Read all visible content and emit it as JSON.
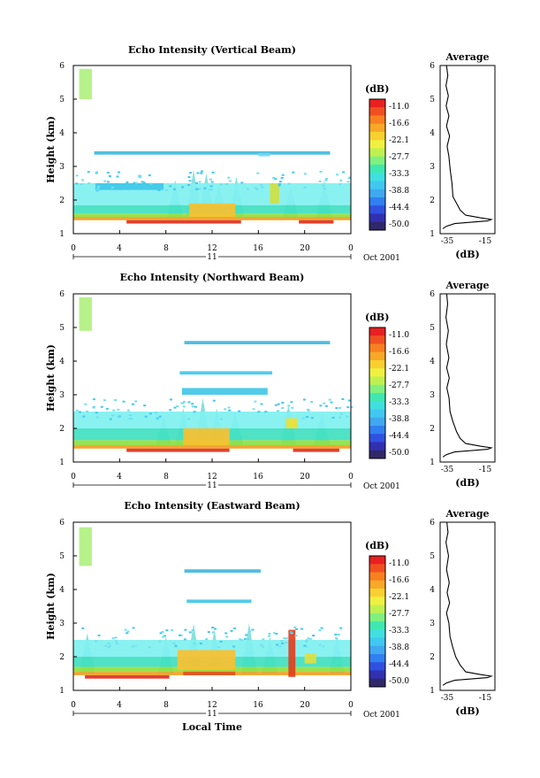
{
  "chart_data": [
    {
      "type": "heatmap",
      "title": "Echo Intensity (Vertical Beam)",
      "ylabel": "Height (km)",
      "y_ticks": [
        "1",
        "2",
        "3",
        "4",
        "5",
        "6"
      ],
      "x_ticks": [
        "0",
        "4",
        "8",
        "12",
        "16",
        "20",
        "0"
      ],
      "date_day": "11",
      "date_label": "Oct 2001",
      "ylim": [
        1,
        6
      ],
      "xlim": [
        0,
        24
      ],
      "layers": [
        {
          "x0": 0,
          "x1": 24,
          "y0": 1.4,
          "y1": 1.5,
          "c": "#f0a020"
        },
        {
          "x0": 4.6,
          "x1": 14.5,
          "y0": 1.3,
          "y1": 1.4,
          "c": "#e03020"
        },
        {
          "x0": 19.5,
          "x1": 22.5,
          "y0": 1.3,
          "y1": 1.4,
          "c": "#e03020"
        },
        {
          "x0": 0,
          "x1": 24,
          "y0": 1.5,
          "y1": 1.6,
          "c": "#90e040"
        },
        {
          "x0": 0,
          "x1": 24,
          "y0": 1.6,
          "y1": 1.85,
          "c": "#40e0c0"
        },
        {
          "x0": 0,
          "x1": 24,
          "y0": 1.85,
          "y1": 2.5,
          "c": "#80f0f0"
        },
        {
          "x0": 10,
          "x1": 14,
          "y0": 1.5,
          "y1": 1.9,
          "c": "#f8c030"
        },
        {
          "x0": 1.8,
          "x1": 22.2,
          "y0": 3.35,
          "y1": 3.45,
          "c": "#40b8e0"
        },
        {
          "x0": 1.9,
          "x1": 7.8,
          "y0": 2.3,
          "y1": 2.5,
          "c": "#40c8e8"
        },
        {
          "x0": 0.5,
          "x1": 1.6,
          "y0": 5.0,
          "y1": 5.9,
          "c": "#b0f080"
        },
        {
          "x0": 16,
          "x1": 17,
          "y0": 3.3,
          "y1": 3.4,
          "c": "#70d8f0"
        },
        {
          "x0": 17,
          "x1": 17.8,
          "y0": 1.9,
          "y1": 2.5,
          "c": "#d0e040"
        }
      ],
      "cols": [
        {
          "x": 8.8,
          "h": 2.6
        },
        {
          "x": 10.4,
          "h": 2.9
        },
        {
          "x": 11.5,
          "h": 2.8
        },
        {
          "x": 12.6,
          "h": 2.5
        },
        {
          "x": 14.1,
          "h": 2.7
        },
        {
          "x": 18.8,
          "h": 2.4
        },
        {
          "x": 21.7,
          "h": 2.6
        }
      ]
    },
    {
      "type": "heatmap",
      "title": "Echo Intensity (Northward Beam)",
      "ylabel": "Height (km)",
      "y_ticks": [
        "1",
        "2",
        "3",
        "4",
        "5",
        "6"
      ],
      "x_ticks": [
        "0",
        "4",
        "8",
        "12",
        "16",
        "20",
        "0"
      ],
      "date_day": "11",
      "date_label": "Oct 2001",
      "ylim": [
        1,
        6
      ],
      "xlim": [
        0,
        24
      ],
      "layers": [
        {
          "x0": 0,
          "x1": 24,
          "y0": 1.4,
          "y1": 1.5,
          "c": "#f0a020"
        },
        {
          "x0": 4.6,
          "x1": 13.5,
          "y0": 1.3,
          "y1": 1.4,
          "c": "#e03020"
        },
        {
          "x0": 19.0,
          "x1": 23.0,
          "y0": 1.3,
          "y1": 1.4,
          "c": "#e03020"
        },
        {
          "x0": 0,
          "x1": 24,
          "y0": 1.5,
          "y1": 1.65,
          "c": "#90e040"
        },
        {
          "x0": 0,
          "x1": 24,
          "y0": 1.65,
          "y1": 2.0,
          "c": "#40e0c0"
        },
        {
          "x0": 0,
          "x1": 24,
          "y0": 2.0,
          "y1": 2.5,
          "c": "#80f0f0"
        },
        {
          "x0": 9.5,
          "x1": 13.5,
          "y0": 1.5,
          "y1": 2.0,
          "c": "#f8c030"
        },
        {
          "x0": 9.6,
          "x1": 22.2,
          "y0": 4.5,
          "y1": 4.6,
          "c": "#40b8e0"
        },
        {
          "x0": 9.2,
          "x1": 17.2,
          "y0": 3.6,
          "y1": 3.7,
          "c": "#40c8e8"
        },
        {
          "x0": 9.4,
          "x1": 16.8,
          "y0": 3.0,
          "y1": 3.2,
          "c": "#40c8e8"
        },
        {
          "x0": 0.5,
          "x1": 1.6,
          "y0": 4.9,
          "y1": 5.9,
          "c": "#b0f080"
        },
        {
          "x0": 18.4,
          "x1": 19.4,
          "y0": 2.0,
          "y1": 2.3,
          "c": "#f0e030"
        }
      ],
      "cols": [
        {
          "x": 7.8,
          "h": 2.4
        },
        {
          "x": 9.5,
          "h": 2.6
        },
        {
          "x": 11.2,
          "h": 2.9
        },
        {
          "x": 12.4,
          "h": 2.6
        },
        {
          "x": 14.0,
          "h": 2.5
        },
        {
          "x": 18.6,
          "h": 2.7
        },
        {
          "x": 21.5,
          "h": 2.5
        }
      ]
    },
    {
      "type": "heatmap",
      "title": "Echo Intensity (Eastward Beam)",
      "ylabel": "Height (km)",
      "xlabel": "Local Time",
      "y_ticks": [
        "1",
        "2",
        "3",
        "4",
        "5",
        "6"
      ],
      "x_ticks": [
        "0",
        "4",
        "8",
        "12",
        "16",
        "20",
        "0"
      ],
      "date_day": "11",
      "date_label": "Oct 2001",
      "ylim": [
        1,
        6
      ],
      "xlim": [
        0,
        24
      ],
      "layers": [
        {
          "x0": 0,
          "x1": 24,
          "y0": 1.45,
          "y1": 1.55,
          "c": "#f0a020"
        },
        {
          "x0": 1.0,
          "x1": 8.3,
          "y0": 1.35,
          "y1": 1.45,
          "c": "#e03020"
        },
        {
          "x0": 9.5,
          "x1": 14.0,
          "y0": 1.45,
          "y1": 1.6,
          "c": "#e05020"
        },
        {
          "x0": 0,
          "x1": 24,
          "y0": 1.55,
          "y1": 1.7,
          "c": "#90e040"
        },
        {
          "x0": 0,
          "x1": 24,
          "y0": 1.7,
          "y1": 2.0,
          "c": "#40e0c0"
        },
        {
          "x0": 0,
          "x1": 24,
          "y0": 2.0,
          "y1": 2.5,
          "c": "#80f0f0"
        },
        {
          "x0": 9.0,
          "x1": 14.0,
          "y0": 1.6,
          "y1": 2.2,
          "c": "#f8c030"
        },
        {
          "x0": 9.6,
          "x1": 16.2,
          "y0": 4.5,
          "y1": 4.6,
          "c": "#40b8e0"
        },
        {
          "x0": 9.8,
          "x1": 15.4,
          "y0": 3.6,
          "y1": 3.7,
          "c": "#40c8e8"
        },
        {
          "x0": 0.5,
          "x1": 1.6,
          "y0": 4.7,
          "y1": 5.85,
          "c": "#b0f080"
        },
        {
          "x0": 18.6,
          "x1": 19.2,
          "y0": 1.4,
          "y1": 2.8,
          "c": "#e04020"
        },
        {
          "x0": 20.0,
          "x1": 21.0,
          "y0": 1.8,
          "y1": 2.1,
          "c": "#e0e040"
        }
      ],
      "cols": [
        {
          "x": 1.2,
          "h": 2.7
        },
        {
          "x": 8.0,
          "h": 2.6
        },
        {
          "x": 10.4,
          "h": 3.0
        },
        {
          "x": 12.2,
          "h": 2.8
        },
        {
          "x": 15.2,
          "h": 3.0
        },
        {
          "x": 17.0,
          "h": 2.6
        },
        {
          "x": 22.8,
          "h": 2.6
        }
      ]
    }
  ],
  "colorbar": {
    "unit": "(dB)",
    "labels": [
      "-11.0",
      "-16.6",
      "-22.1",
      "-27.7",
      "-33.3",
      "-38.8",
      "-44.4",
      "-50.0"
    ],
    "colors": [
      "#e82020",
      "#f05020",
      "#f88020",
      "#f8a828",
      "#f8d030",
      "#f0f040",
      "#c0f050",
      "#80f080",
      "#40e8b0",
      "#40e0e0",
      "#40c8f0",
      "#40a8f0",
      "#3080f0",
      "#3050e0",
      "#3030b0",
      "#302868"
    ]
  },
  "profiles": [
    {
      "title": "Average",
      "xlabel": "(dB)",
      "x_ticks": [
        "-35",
        "-15"
      ],
      "y_ticks": [
        "1",
        "2",
        "3",
        "4",
        "5",
        "6"
      ],
      "xlim": [
        -40,
        -10
      ],
      "ylim": [
        1,
        6
      ],
      "points": [
        [
          -38.5,
          1.15
        ],
        [
          -36.5,
          1.22
        ],
        [
          -32,
          1.3
        ],
        [
          -14,
          1.38
        ],
        [
          -12,
          1.42
        ],
        [
          -18,
          1.47
        ],
        [
          -26,
          1.55
        ],
        [
          -29,
          1.7
        ],
        [
          -31,
          1.9
        ],
        [
          -33,
          2.1
        ],
        [
          -33.5,
          2.5
        ],
        [
          -34.5,
          2.9
        ],
        [
          -35.2,
          3.3
        ],
        [
          -36.2,
          3.6
        ],
        [
          -34.8,
          3.9
        ],
        [
          -36.5,
          4.2
        ],
        [
          -35.2,
          4.5
        ],
        [
          -36.7,
          4.8
        ],
        [
          -35.5,
          5.1
        ],
        [
          -36.8,
          5.4
        ],
        [
          -35.8,
          5.7
        ],
        [
          -36.5,
          6.0
        ]
      ]
    },
    {
      "title": "Average",
      "xlabel": "(dB)",
      "x_ticks": [
        "-35",
        "-15"
      ],
      "y_ticks": [
        "1",
        "2",
        "3",
        "4",
        "5",
        "6"
      ],
      "xlim": [
        -40,
        -10
      ],
      "ylim": [
        1,
        6
      ],
      "points": [
        [
          -38.5,
          1.15
        ],
        [
          -36.5,
          1.22
        ],
        [
          -32,
          1.3
        ],
        [
          -14,
          1.38
        ],
        [
          -12,
          1.42
        ],
        [
          -18,
          1.47
        ],
        [
          -26,
          1.55
        ],
        [
          -29,
          1.7
        ],
        [
          -31,
          1.9
        ],
        [
          -33,
          2.2
        ],
        [
          -34.6,
          2.5
        ],
        [
          -35.1,
          2.9
        ],
        [
          -36.3,
          3.2
        ],
        [
          -35.0,
          3.5
        ],
        [
          -36.4,
          3.8
        ],
        [
          -35.2,
          4.1
        ],
        [
          -36.6,
          4.5
        ],
        [
          -35.5,
          4.9
        ],
        [
          -36.8,
          5.3
        ],
        [
          -35.9,
          5.7
        ],
        [
          -36.4,
          6.0
        ]
      ]
    },
    {
      "title": "Average",
      "xlabel": "(dB)",
      "x_ticks": [
        "-35",
        "-15"
      ],
      "y_ticks": [
        "1",
        "2",
        "3",
        "4",
        "5",
        "6"
      ],
      "xlim": [
        -40,
        -10
      ],
      "ylim": [
        1,
        6
      ],
      "points": [
        [
          -38.5,
          1.15
        ],
        [
          -36.5,
          1.22
        ],
        [
          -32,
          1.3
        ],
        [
          -14,
          1.38
        ],
        [
          -12,
          1.42
        ],
        [
          -18,
          1.47
        ],
        [
          -26,
          1.55
        ],
        [
          -29,
          1.75
        ],
        [
          -31.5,
          2.0
        ],
        [
          -33.2,
          2.3
        ],
        [
          -34.6,
          2.6
        ],
        [
          -35.2,
          3.0
        ],
        [
          -36.5,
          3.3
        ],
        [
          -34.8,
          3.6
        ],
        [
          -36.2,
          3.9
        ],
        [
          -35.0,
          4.2
        ],
        [
          -36.5,
          4.6
        ],
        [
          -35.4,
          5.0
        ],
        [
          -36.8,
          5.4
        ],
        [
          -35.7,
          5.7
        ],
        [
          -36.3,
          6.0
        ]
      ]
    }
  ]
}
